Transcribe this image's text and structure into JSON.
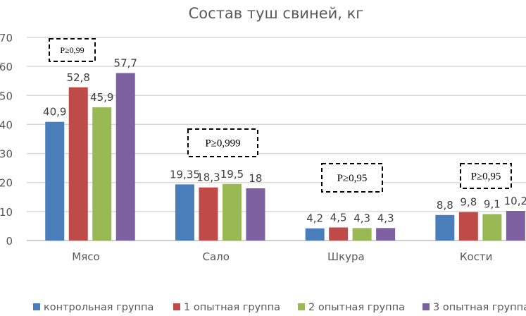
{
  "chart_data": {
    "type": "bar",
    "title": "Состав  туш свиней, кг",
    "categories": [
      "Мясо",
      "Сало",
      "Шкура",
      "Кости"
    ],
    "series": [
      {
        "name": "контрольная группа",
        "color": "#4a7ebb",
        "values": [
          40.9,
          19.35,
          4.2,
          8.8
        ],
        "labels": [
          "40,9",
          "19,35",
          "4,2",
          "8,8"
        ]
      },
      {
        "name": "1 опытная группа",
        "color": "#be4b48",
        "values": [
          52.8,
          18.3,
          4.5,
          9.8
        ],
        "labels": [
          "52,8",
          "18,3",
          "4,5",
          "9,8"
        ]
      },
      {
        "name": "2 опытная группа",
        "color": "#98b954",
        "values": [
          45.9,
          19.5,
          4.3,
          9.1
        ],
        "labels": [
          "45,9",
          "19,5",
          "4,3",
          "9,1"
        ]
      },
      {
        "name": "3 опытная группа",
        "color": "#7d60a0",
        "values": [
          57.7,
          18,
          4.3,
          10.2
        ],
        "labels": [
          "57,7",
          "18",
          "4,3",
          "10,2"
        ]
      }
    ],
    "yticks": [
      "0",
      "10",
      "20",
      "30",
      "40",
      "50",
      "60",
      "70"
    ],
    "ylim": [
      0,
      70
    ],
    "grid": true,
    "legend": "bottom",
    "annotations": [
      "P≥0,99",
      "P≥0,999",
      "P≥0,95",
      "P≥0,95"
    ]
  }
}
